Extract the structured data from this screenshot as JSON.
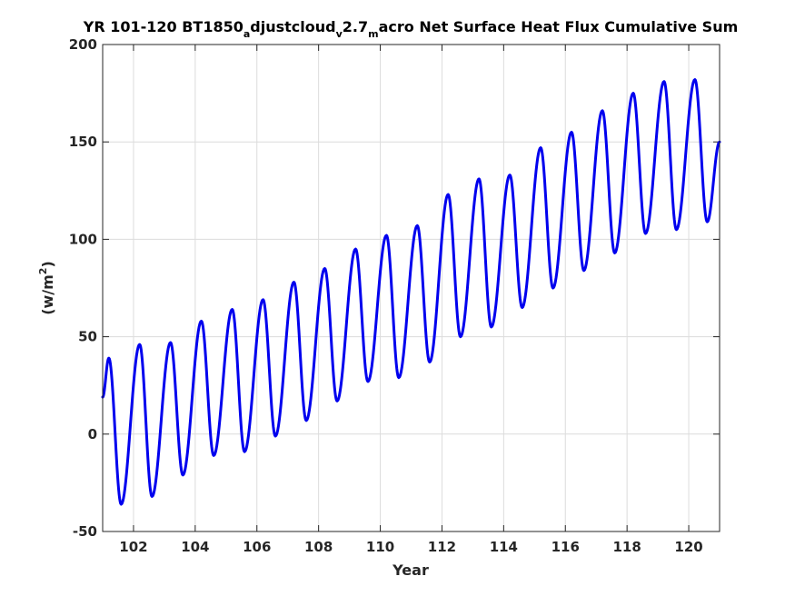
{
  "chart_data": {
    "type": "line",
    "title": {
      "prefix": "YR 101-120 BT1850",
      "sub1": "a",
      "part2": "djustcloud",
      "sub2": "v",
      "part3": "2.7",
      "sub3": "m",
      "suffix": "acro Net Surface Heat Flux  Cumulative Sum"
    },
    "xlabel": "Year",
    "ylabel": {
      "main": "(w/m",
      "sup": "2",
      "close": ")"
    },
    "xlim": [
      101,
      121
    ],
    "ylim": [
      -50,
      200
    ],
    "xticks": [
      "102",
      "104",
      "106",
      "108",
      "110",
      "112",
      "114",
      "116",
      "118",
      "120"
    ],
    "yticks": [
      "-50",
      "0",
      "50",
      "100",
      "150",
      "200"
    ],
    "grid": true,
    "series": [
      {
        "color": "#0000ee",
        "x": [
          101.0,
          101.2,
          101.6,
          102.2,
          102.6,
          103.2,
          103.6,
          104.2,
          104.6,
          105.2,
          105.6,
          106.2,
          106.6,
          107.2,
          107.6,
          108.2,
          108.6,
          109.2,
          109.6,
          110.2,
          110.6,
          111.2,
          111.6,
          112.2,
          112.6,
          113.2,
          113.6,
          114.2,
          114.6,
          115.2,
          115.6,
          116.2,
          116.6,
          117.2,
          117.6,
          118.2,
          118.6,
          119.2,
          119.6,
          120.2,
          120.6,
          121.0
        ],
        "y": [
          19,
          39,
          -36,
          46,
          -32,
          47,
          -21,
          58,
          -11,
          64,
          -9,
          69,
          -1,
          78,
          7,
          85,
          17,
          95,
          27,
          102,
          29,
          107,
          37,
          123,
          50,
          131,
          55,
          133,
          65,
          147,
          75,
          155,
          84,
          166,
          93,
          175,
          103,
          181,
          105,
          182,
          109,
          150
        ]
      }
    ]
  }
}
